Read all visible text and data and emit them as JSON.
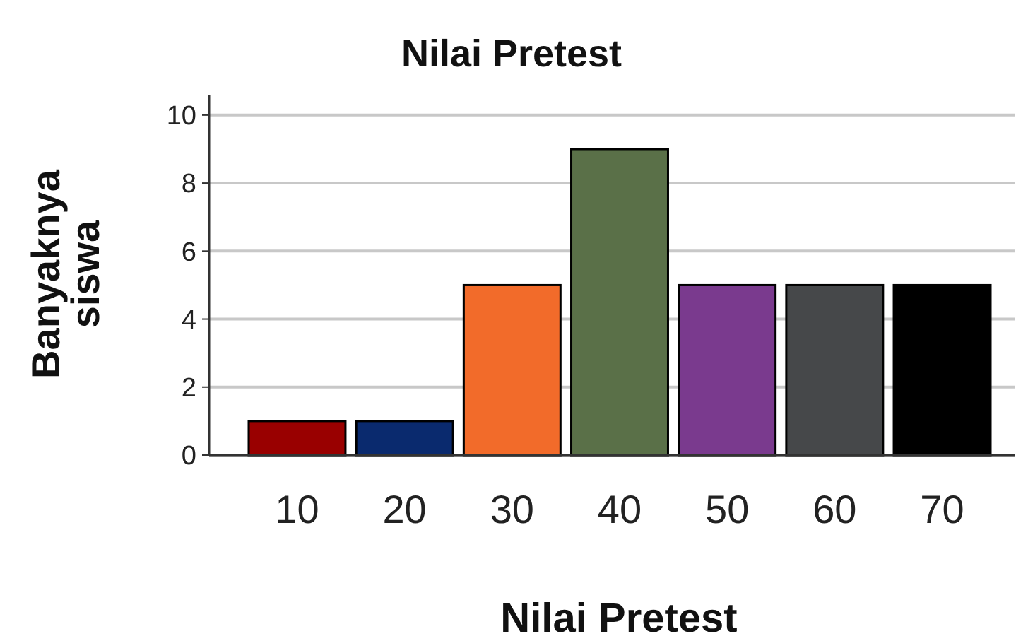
{
  "chart_data": {
    "type": "bar",
    "title": "Nilai Pretest",
    "xlabel": "Nilai Pretest",
    "ylabel": "Banyaknya siswa",
    "categories": [
      "10",
      "20",
      "30",
      "40",
      "50",
      "60",
      "70"
    ],
    "values": [
      1,
      1,
      5,
      9,
      5,
      5,
      5
    ],
    "colors": [
      "#990000",
      "#0a2a6e",
      "#f26b2a",
      "#5a7048",
      "#7a3a8e",
      "#46484a",
      "#000000"
    ],
    "ylim": [
      0,
      10.6
    ],
    "yticks": [
      0,
      2,
      4,
      6,
      8,
      10
    ],
    "grid": "y"
  }
}
